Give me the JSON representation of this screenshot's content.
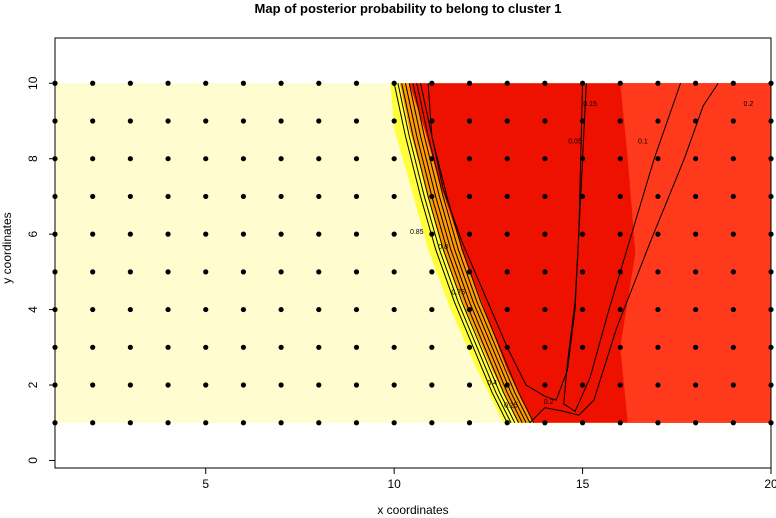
{
  "chart_data": {
    "type": "heatmap",
    "title": "Map of posterior probability to belong to cluster  1",
    "xlabel": "x coordinates",
    "ylabel": "y coordinates",
    "xlim": [
      1,
      20
    ],
    "ylim": [
      -0.2,
      11.2
    ],
    "x_ticks": [
      5,
      10,
      15,
      20
    ],
    "y_ticks": [
      0,
      2,
      4,
      6,
      8,
      10
    ],
    "grid": false,
    "legend": "none",
    "field_extent": {
      "x": [
        1,
        20
      ],
      "y": [
        1,
        10
      ]
    },
    "colors": {
      "low": "#fffdd0",
      "yellow": "#ffff3a",
      "orange": "#ff9a00",
      "high": "#ee1100",
      "high_light": "#ff3a1c",
      "contour": "#000000",
      "points": "#000000"
    },
    "grid_points": {
      "x_start": 1,
      "x_end": 20,
      "x_step": 1,
      "y_start": 1,
      "y_end": 10,
      "y_step": 1
    },
    "contour_labels": [
      {
        "text": "0.85",
        "x": 10.6,
        "y": 6.0
      },
      {
        "text": "0.8",
        "x": 11.3,
        "y": 5.6
      },
      {
        "text": "0.75",
        "x": 11.7,
        "y": 4.4
      },
      {
        "text": "0.4",
        "x": 12.6,
        "y": 2.0
      },
      {
        "text": "0.25",
        "x": 13.1,
        "y": 1.4
      },
      {
        "text": "0.2",
        "x": 14.1,
        "y": 1.5
      },
      {
        "text": "0.05",
        "x": 14.8,
        "y": 8.4
      },
      {
        "text": "0.1",
        "x": 16.6,
        "y": 8.4
      },
      {
        "text": "0.2",
        "x": 19.4,
        "y": 9.4
      },
      {
        "text": "0.15",
        "x": 15.2,
        "y": 9.4
      }
    ]
  }
}
